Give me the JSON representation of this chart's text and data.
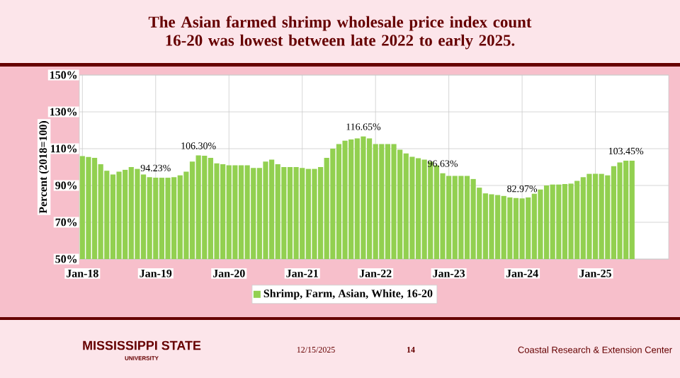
{
  "chart_data": {
    "type": "bar",
    "title": "The Asian farmed shrimp wholesale price index count 16-20 was lowest between late 2022 to early 2025.",
    "ylabel": "Percent (2018=100)",
    "categories": [
      "Jan-18",
      null,
      null,
      null,
      null,
      null,
      null,
      null,
      null,
      null,
      null,
      null,
      "Jan-19",
      null,
      null,
      null,
      null,
      null,
      null,
      null,
      null,
      null,
      null,
      null,
      "Jan-20",
      null,
      null,
      null,
      null,
      null,
      null,
      null,
      null,
      null,
      null,
      null,
      "Jan-21",
      null,
      null,
      null,
      null,
      null,
      null,
      null,
      null,
      null,
      null,
      null,
      "Jan-22",
      null,
      null,
      null,
      null,
      null,
      null,
      null,
      null,
      null,
      null,
      null,
      "Jan-23",
      null,
      null,
      null,
      null,
      null,
      null,
      null,
      null,
      null,
      null,
      null,
      "Jan-24",
      null,
      null,
      null,
      null,
      null,
      null,
      null,
      null,
      null,
      null,
      null,
      "Jan-25",
      null,
      null,
      null,
      null,
      null,
      null
    ],
    "series": [
      {
        "name": "Shrimp, Farm, Asian, White, 16-20",
        "color": "#92d050",
        "values": [
          106,
          105.5,
          105,
          101.5,
          98,
          96,
          97.5,
          98.5,
          100,
          99,
          96,
          94.5,
          94.23,
          94.2,
          94.2,
          94.5,
          95.5,
          97.5,
          103,
          106.3,
          106.2,
          105,
          102,
          101.5,
          101,
          101,
          101,
          101,
          99.5,
          99.5,
          103,
          104,
          101.5,
          100,
          100,
          100,
          99.5,
          99,
          99,
          100,
          105,
          110,
          112.5,
          114.3,
          115,
          115.6,
          116.65,
          115.6,
          112.5,
          112.5,
          112.5,
          112.5,
          109.4,
          107.4,
          105.6,
          104.8,
          104,
          103,
          101,
          96.63,
          95.2,
          95.2,
          95.2,
          95.2,
          93.5,
          88.8,
          85.7,
          85.2,
          84.8,
          84.3,
          83.5,
          83.2,
          82.97,
          83.5,
          85.5,
          87.8,
          90,
          90.5,
          90.5,
          90.8,
          91,
          92.5,
          94.5,
          96.3,
          96.3,
          96.3,
          95.5,
          100.5,
          102.5,
          103.45,
          103.45
        ],
        "value_labels": [
          null,
          null,
          null,
          null,
          null,
          null,
          null,
          null,
          null,
          null,
          null,
          null,
          "94.23%",
          null,
          null,
          null,
          null,
          null,
          null,
          "106.30%",
          null,
          null,
          null,
          null,
          null,
          null,
          null,
          null,
          null,
          null,
          null,
          null,
          null,
          null,
          null,
          null,
          null,
          null,
          null,
          null,
          null,
          null,
          null,
          null,
          null,
          null,
          "116.65%",
          null,
          null,
          null,
          null,
          null,
          null,
          null,
          null,
          null,
          null,
          null,
          null,
          "96.63%",
          null,
          null,
          null,
          null,
          null,
          null,
          null,
          null,
          null,
          null,
          null,
          null,
          "82.97%",
          null,
          null,
          null,
          null,
          null,
          null,
          null,
          null,
          null,
          null,
          null,
          null,
          null,
          null,
          null,
          null,
          "103.45%",
          null
        ]
      }
    ],
    "ylim": [
      50,
      150
    ],
    "yticks": [
      {
        "value": 50,
        "label": "50%"
      },
      {
        "value": 70,
        "label": "70%"
      },
      {
        "value": 90,
        "label": "90%"
      },
      {
        "value": 110,
        "label": "110%"
      },
      {
        "value": 130,
        "label": "130%"
      },
      {
        "value": 150,
        "label": "150%"
      }
    ],
    "grid": true,
    "legend": "bottom",
    "annotations": [
      "MISSISSIPPI STATE",
      "UNIVERSITY",
      "12/15/2025",
      "14",
      "Coastal Research & Extension Center"
    ]
  }
}
